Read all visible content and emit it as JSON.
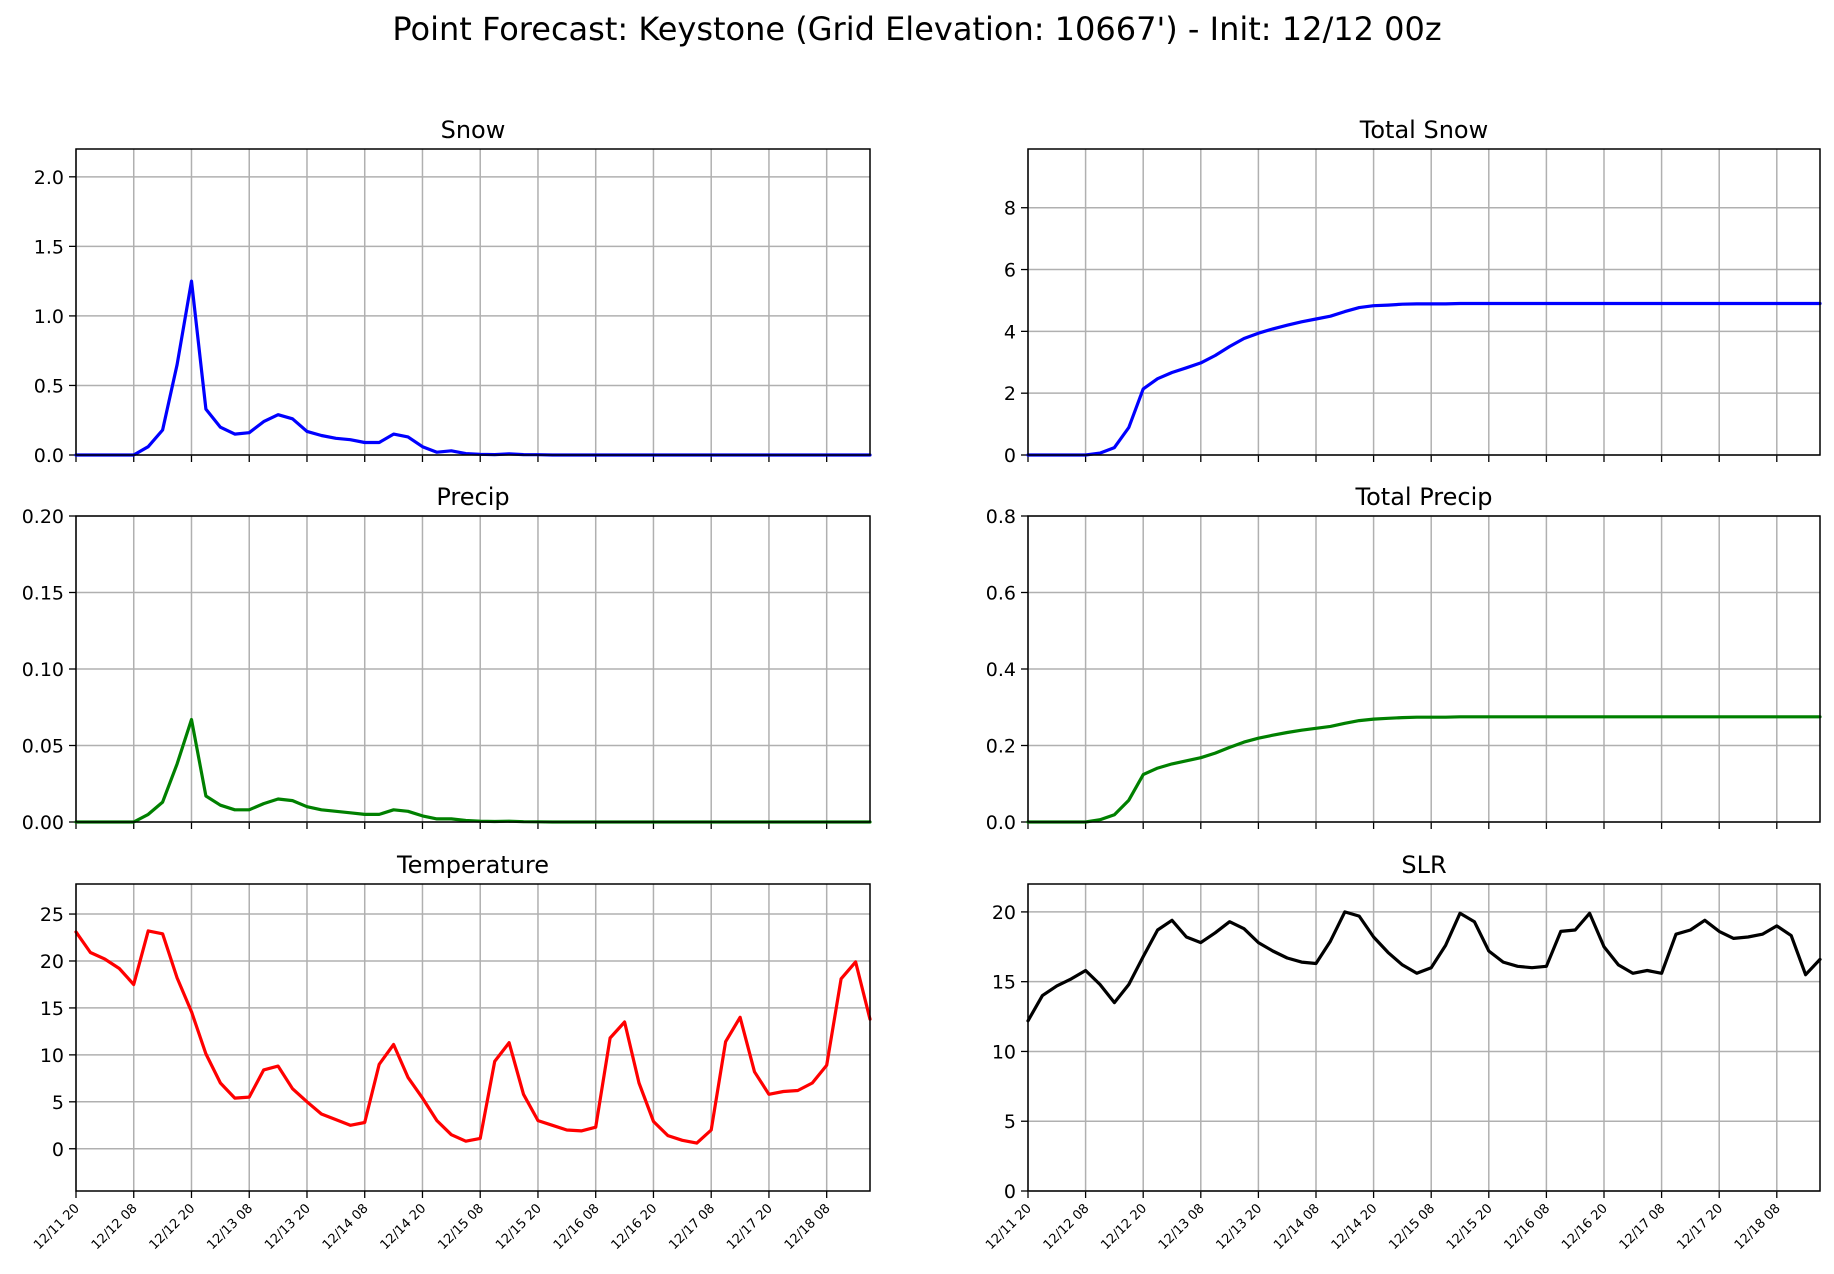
{
  "suptitle": "Point Forecast: Keystone (Grid Elevation: 10667') - Init: 12/12 00z",
  "x_tick_labels": [
    "12/11 20",
    "12/12 08",
    "12/12 20",
    "12/13 08",
    "12/13 20",
    "12/14 08",
    "12/14 20",
    "12/15 08",
    "12/15 20",
    "12/16 08",
    "12/16 20",
    "12/17 08",
    "12/17 20",
    "12/18 08"
  ],
  "chart_data": [
    {
      "type": "line",
      "title": "Snow",
      "color": "#0000ff",
      "ylim": [
        0,
        2.2
      ],
      "y_ticks": [
        "0.0",
        "0.5",
        "1.0",
        "1.5",
        "2.0"
      ],
      "x_hours": [
        0,
        3,
        6,
        9,
        12,
        15,
        18,
        21,
        24,
        27,
        30,
        33,
        36,
        39,
        42,
        45,
        48,
        51,
        54,
        57,
        60,
        63,
        66,
        69,
        72,
        75,
        78,
        81,
        84,
        87,
        90,
        93,
        96,
        99,
        102,
        105,
        108,
        111,
        114,
        117,
        120,
        123,
        126,
        129,
        132,
        135,
        138,
        141,
        144,
        147,
        150,
        153,
        156,
        159,
        162,
        165
      ],
      "values": [
        0,
        0,
        0,
        0,
        0,
        0.06,
        0.18,
        0.65,
        1.25,
        0.33,
        0.2,
        0.15,
        0.16,
        0.24,
        0.29,
        0.26,
        0.17,
        0.14,
        0.12,
        0.11,
        0.09,
        0.09,
        0.15,
        0.13,
        0.06,
        0.02,
        0.03,
        0.01,
        0.005,
        0.003,
        0.008,
        0.003,
        0.002,
        0,
        0,
        0,
        0,
        0,
        0,
        0,
        0,
        0,
        0,
        0,
        0,
        0,
        0,
        0,
        0,
        0,
        0,
        0,
        0,
        0,
        0,
        0
      ]
    },
    {
      "type": "line",
      "title": "Total Snow",
      "color": "#0000ff",
      "ylim": [
        0,
        9.9
      ],
      "y_ticks": [
        "0",
        "2",
        "4",
        "6",
        "8"
      ],
      "x_hours": [
        0,
        3,
        6,
        9,
        12,
        15,
        18,
        21,
        24,
        27,
        30,
        33,
        36,
        39,
        42,
        45,
        48,
        51,
        54,
        57,
        60,
        63,
        66,
        69,
        72,
        75,
        78,
        81,
        84,
        87,
        90,
        93,
        96,
        99,
        102,
        105,
        108,
        111,
        114,
        117,
        120,
        123,
        126,
        129,
        132,
        135,
        138,
        141,
        144,
        147,
        150,
        153,
        156,
        159,
        162,
        165
      ],
      "values": [
        0,
        0,
        0,
        0,
        0,
        0.06,
        0.24,
        0.89,
        2.14,
        2.47,
        2.67,
        2.82,
        2.98,
        3.22,
        3.51,
        3.77,
        3.94,
        4.08,
        4.2,
        4.31,
        4.4,
        4.49,
        4.64,
        4.77,
        4.83,
        4.85,
        4.88,
        4.89,
        4.89,
        4.89,
        4.9,
        4.9,
        4.9,
        4.9,
        4.9,
        4.9,
        4.9,
        4.9,
        4.9,
        4.9,
        4.9,
        4.9,
        4.9,
        4.9,
        4.9,
        4.9,
        4.9,
        4.9,
        4.9,
        4.9,
        4.9,
        4.9,
        4.9,
        4.9,
        4.9,
        4.9
      ]
    },
    {
      "type": "line",
      "title": "Precip",
      "color": "#008000",
      "ylim": [
        0,
        0.2
      ],
      "y_ticks": [
        "0.00",
        "0.05",
        "0.10",
        "0.15",
        "0.20"
      ],
      "x_hours": [
        0,
        3,
        6,
        9,
        12,
        15,
        18,
        21,
        24,
        27,
        30,
        33,
        36,
        39,
        42,
        45,
        48,
        51,
        54,
        57,
        60,
        63,
        66,
        69,
        72,
        75,
        78,
        81,
        84,
        87,
        90,
        93,
        96,
        99,
        102,
        105,
        108,
        111,
        114,
        117,
        120,
        123,
        126,
        129,
        132,
        135,
        138,
        141,
        144,
        147,
        150,
        153,
        156,
        159,
        162,
        165
      ],
      "values": [
        0,
        0,
        0,
        0,
        0,
        0.005,
        0.013,
        0.038,
        0.067,
        0.017,
        0.011,
        0.008,
        0.008,
        0.012,
        0.015,
        0.014,
        0.01,
        0.008,
        0.007,
        0.006,
        0.005,
        0.005,
        0.008,
        0.007,
        0.004,
        0.002,
        0.002,
        0.001,
        0.0005,
        0.0003,
        0.0005,
        0.0002,
        0.0001,
        0,
        0,
        0,
        0,
        0,
        0,
        0,
        0,
        0,
        0,
        0,
        0,
        0,
        0,
        0,
        0,
        0,
        0,
        0,
        0,
        0,
        0,
        0
      ]
    },
    {
      "type": "line",
      "title": "Total Precip",
      "color": "#008000",
      "ylim": [
        0,
        0.8
      ],
      "y_ticks": [
        "0.0",
        "0.2",
        "0.4",
        "0.6",
        "0.8"
      ],
      "x_hours": [
        0,
        3,
        6,
        9,
        12,
        15,
        18,
        21,
        24,
        27,
        30,
        33,
        36,
        39,
        42,
        45,
        48,
        51,
        54,
        57,
        60,
        63,
        66,
        69,
        72,
        75,
        78,
        81,
        84,
        87,
        90,
        93,
        96,
        99,
        102,
        105,
        108,
        111,
        114,
        117,
        120,
        123,
        126,
        129,
        132,
        135,
        138,
        141,
        144,
        147,
        150,
        153,
        156,
        159,
        162,
        165
      ],
      "values": [
        0,
        0,
        0,
        0,
        0,
        0.006,
        0.019,
        0.057,
        0.124,
        0.141,
        0.152,
        0.16,
        0.168,
        0.18,
        0.195,
        0.209,
        0.219,
        0.227,
        0.234,
        0.24,
        0.245,
        0.25,
        0.258,
        0.265,
        0.269,
        0.271,
        0.273,
        0.274,
        0.274,
        0.274,
        0.275,
        0.275,
        0.275,
        0.275,
        0.275,
        0.275,
        0.275,
        0.275,
        0.275,
        0.275,
        0.275,
        0.275,
        0.275,
        0.275,
        0.275,
        0.275,
        0.275,
        0.275,
        0.275,
        0.275,
        0.275,
        0.275,
        0.275,
        0.275,
        0.275,
        0.275
      ]
    },
    {
      "type": "line",
      "title": "Temperature",
      "color": "#ff0000",
      "ylim": [
        -4.5,
        28.2
      ],
      "y_ticks": [
        "0",
        "5",
        "10",
        "15",
        "20",
        "25"
      ],
      "x_hours": [
        0,
        3,
        6,
        9,
        12,
        15,
        18,
        21,
        24,
        27,
        30,
        33,
        36,
        39,
        42,
        45,
        48,
        51,
        54,
        57,
        60,
        63,
        66,
        69,
        72,
        75,
        78,
        81,
        84,
        87,
        90,
        93,
        96,
        99,
        102,
        105,
        108,
        111,
        114,
        117,
        120,
        123,
        126,
        129,
        132,
        135,
        138,
        141,
        144,
        147,
        150,
        153,
        156,
        159,
        162,
        165
      ],
      "values": [
        23.1,
        20.9,
        20.2,
        19.2,
        17.5,
        23.2,
        22.9,
        18.2,
        14.6,
        10.1,
        7,
        5.4,
        5.5,
        8.4,
        8.8,
        6.4,
        5,
        3.7,
        3.1,
        2.5,
        2.8,
        9,
        11.1,
        7.6,
        5.4,
        3,
        1.5,
        0.8,
        1.1,
        9.3,
        11.3,
        5.8,
        3,
        2.5,
        2,
        1.9,
        2.3,
        11.8,
        13.5,
        7,
        2.9,
        1.4,
        0.9,
        0.6,
        2,
        11.4,
        14,
        8.2,
        5.8,
        6.1,
        6.2,
        7,
        8.9,
        18.1,
        19.9,
        13.8
      ]
    },
    {
      "type": "line",
      "title": "SLR",
      "color": "#000000",
      "ylim": [
        0,
        22
      ],
      "y_ticks": [
        "0",
        "5",
        "10",
        "15",
        "20"
      ],
      "x_hours": [
        0,
        3,
        6,
        9,
        12,
        15,
        18,
        21,
        24,
        27,
        30,
        33,
        36,
        39,
        42,
        45,
        48,
        51,
        54,
        57,
        60,
        63,
        66,
        69,
        72,
        75,
        78,
        81,
        84,
        87,
        90,
        93,
        96,
        99,
        102,
        105,
        108,
        111,
        114,
        117,
        120,
        123,
        126,
        129,
        132,
        135,
        138,
        141,
        144,
        147,
        150,
        153,
        156,
        159,
        162,
        165
      ],
      "values": [
        12.2,
        14,
        14.7,
        15.2,
        15.8,
        14.8,
        13.5,
        14.8,
        16.8,
        18.7,
        19.4,
        18.2,
        17.8,
        18.5,
        19.3,
        18.8,
        17.8,
        17.2,
        16.7,
        16.4,
        16.3,
        17.9,
        20,
        19.7,
        18.2,
        17.1,
        16.2,
        15.6,
        16,
        17.6,
        19.9,
        19.3,
        17.2,
        16.4,
        16.1,
        16,
        16.1,
        18.6,
        18.7,
        19.9,
        17.5,
        16.2,
        15.6,
        15.8,
        15.6,
        18.4,
        18.7,
        19.4,
        18.6,
        18.1,
        18.2,
        18.4,
        19,
        18.3,
        15.5,
        16.6
      ]
    }
  ]
}
